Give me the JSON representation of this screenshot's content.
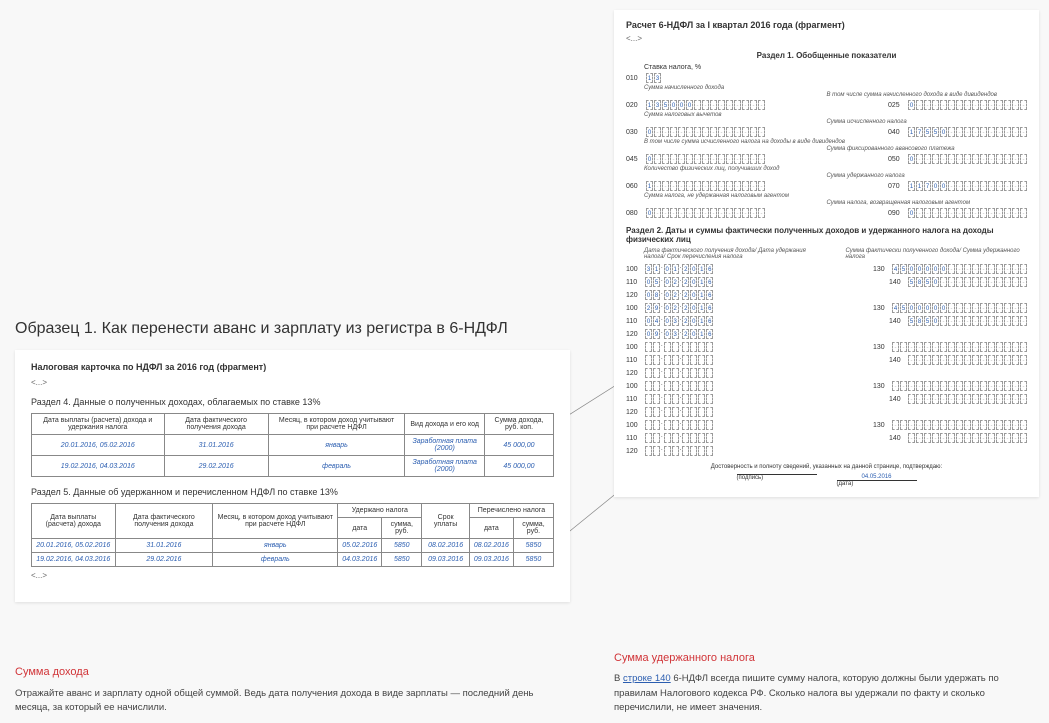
{
  "left": {
    "main_title": "Образец 1. Как перенести аванс и зарплату из регистра в 6-НДФЛ",
    "doc_header": "Налоговая карточка по НДФЛ за 2016 год (фрагмент)",
    "ellipsis": "<...>",
    "section4_title": "Раздел 4. Данные о полученных доходах, облагаемых по ставке 13%",
    "table4": {
      "headers": [
        "Дата выплаты (расчета) дохода и удержания налога",
        "Дата фактического получения дохода",
        "Месяц, в котором доход учитывают при расчете НДФЛ",
        "Вид дохода и его код",
        "Сумма дохода, руб. коп."
      ],
      "rows": [
        [
          "20.01.2016, 05.02.2016",
          "31.01.2016",
          "январь",
          "Заработная плата (2000)",
          "45 000,00"
        ],
        [
          "19.02.2016, 04.03.2016",
          "29.02.2016",
          "февраль",
          "Заработная плата (2000)",
          "45 000,00"
        ]
      ]
    },
    "section5_title": "Раздел 5. Данные об удержанном и перечисленном НДФЛ по ставке 13%",
    "table5": {
      "headers_top": [
        "Дата выплаты (расчета) дохода",
        "Дата фактического получения дохода",
        "Месяц, в котором доход учитывают при расчете НДФЛ",
        "Удержано налога",
        "Срок уплаты",
        "Перечислено налога"
      ],
      "sub": [
        "дата",
        "сумма, руб.",
        "дата",
        "сумма, руб."
      ],
      "rows": [
        [
          "20.01.2016, 05.02.2016",
          "31.01.2016",
          "январь",
          "05.02.2016",
          "5850",
          "08.02.2016",
          "08.02.2016",
          "5850"
        ],
        [
          "19.02.2016, 04.03.2016",
          "29.02.2016",
          "февраль",
          "04.03.2016",
          "5850",
          "09.03.2016",
          "09.03.2016",
          "5850"
        ]
      ]
    }
  },
  "right": {
    "title": "Расчет 6-НДФЛ за I квартал 2016 года (фрагмент)",
    "ellipsis": "<...>",
    "section1": "Раздел 1. Обобщенные показатели",
    "rate_label": "Ставка налога, %",
    "rate_value": "13",
    "lines": {
      "010": {
        "caption": "",
        "left": "13"
      },
      "020": {
        "caption": "Сумма начисленного дохода",
        "value_left": "135000.00",
        "cap_right": "В том числе сумма начисленного дохода в виде дивидендов",
        "value_right": "0.00",
        "line_right": "025"
      },
      "030": {
        "caption": "Сумма налоговых вычетов",
        "value": "0.00",
        "cap_right": "Сумма исчисленного налога",
        "value_right": "17550",
        "line_right": "040"
      },
      "045": {
        "caption": "В том числе сумма исчисленного налога на доходы в виде дивидендов",
        "value": "0",
        "cap_right": "Сумма фиксированного авансового платежа",
        "value_right": "0",
        "line_right": "050"
      },
      "060": {
        "caption": "Количество физических лиц, получивших доход",
        "value": "1",
        "cap_right": "Сумма удержанного налога",
        "value_right": "11700",
        "line_right": "070"
      },
      "080": {
        "caption": "Сумма налога, не удержанная налоговым агентом",
        "value": "0",
        "cap_right": "Сумма налога, возвращенная налоговым агентом",
        "value_right": "0",
        "line_right": "090"
      }
    },
    "section2": "Раздел 2. Даты и суммы фактически полученных доходов и удержанного налога на доходы физических лиц",
    "s2_head_left": "Дата фактического получения дохода/ Дата удержания налога/ Срок перечисления налога",
    "s2_head_right": "Сумма фактически полученного дохода/ Сумма удержанного налога",
    "rows": [
      {
        "l100": "31.01.2016",
        "l130": "45000.00",
        "l110": "05.02.2016",
        "l140": "5850",
        "l120": "08.02.2016"
      },
      {
        "l100": "29.02.2016",
        "l130": "45000.00",
        "l110": "04.03.2016",
        "l140": "5850",
        "l120": "09.03.2016"
      },
      {
        "l100": "",
        "l130": "",
        "l110": "",
        "l140": "",
        "l120": ""
      },
      {
        "l100": "",
        "l130": "",
        "l110": "",
        "l140": "",
        "l120": ""
      },
      {
        "l100": "",
        "l130": "",
        "l110": "",
        "l140": "",
        "l120": ""
      }
    ],
    "confirm": "Достоверность и полноту сведений, указанных на данной странице, подтверждаю:",
    "sign_date": "04.05.2016",
    "sign_labels": [
      "(подпись)",
      "(дата)"
    ]
  },
  "footer_left": {
    "title": "Сумма дохода",
    "text": "Отражайте аванс и зарплату одной общей суммой. Ведь дата получения дохода в виде зарплаты — последний день месяца, за который ее начислили."
  },
  "footer_right": {
    "title": "Сумма удержанного налога",
    "text_prefix": "В ",
    "link": "строке 140",
    "text_suffix": " 6-НДФЛ всегда пишите сумму налога, которую должны были удержать по правилам Налогового кодекса РФ. Сколько налога вы удержали по факту и сколько перечислили, не имеет значения."
  },
  "colors": {
    "accent_red": "#d13438",
    "link_blue": "#2a5db0",
    "cell_border": "#999999",
    "text": "#333333"
  }
}
